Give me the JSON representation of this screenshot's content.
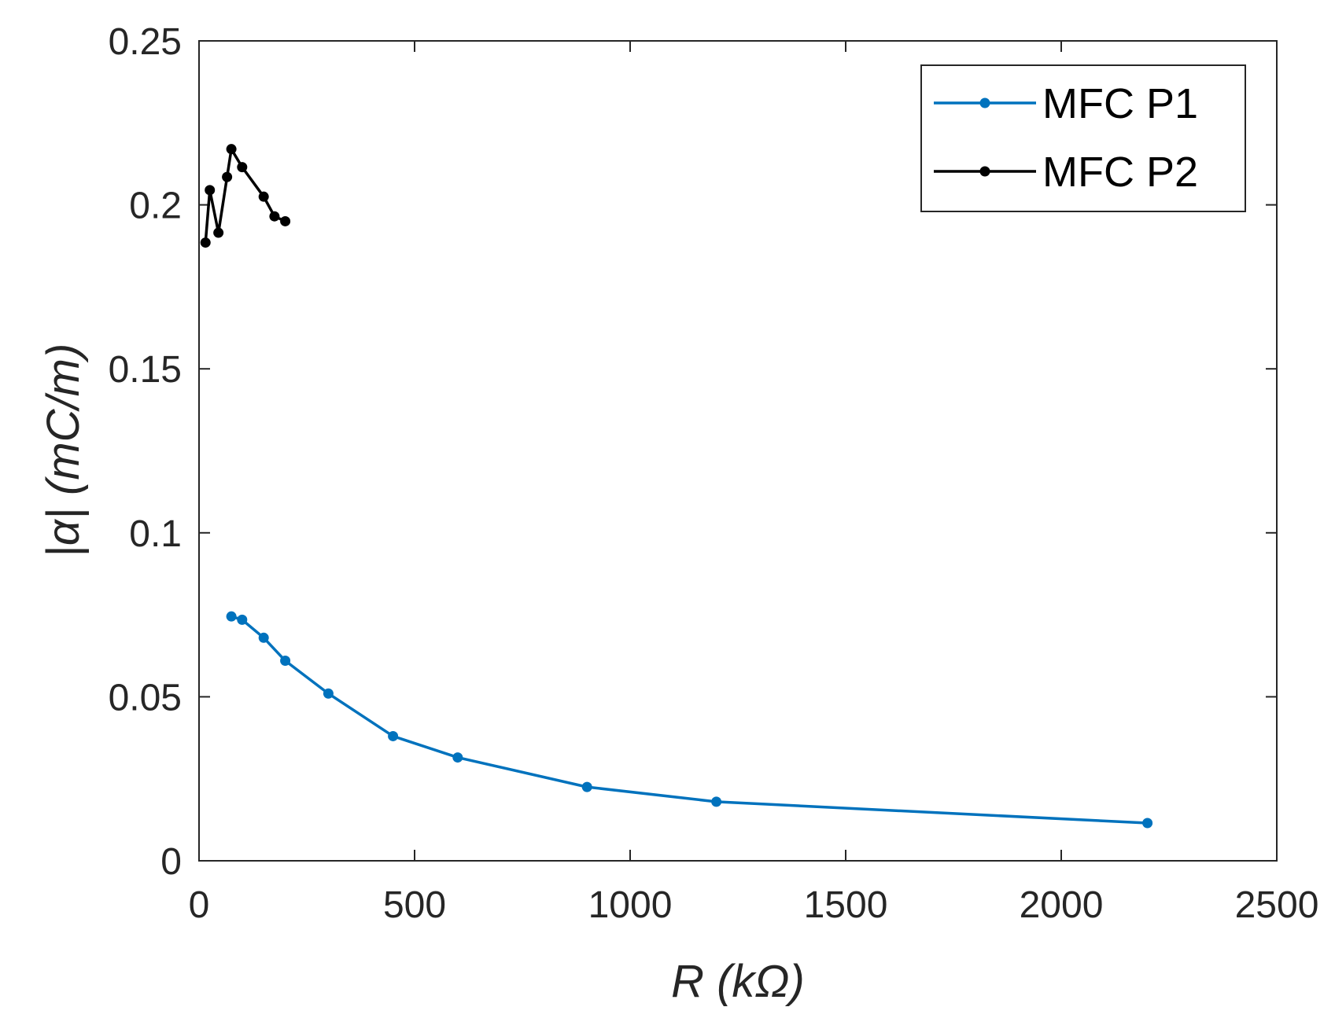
{
  "chart_data": {
    "type": "line",
    "title": "",
    "xlabel": "R (kΩ)",
    "ylabel": "|α|  (mC/m)",
    "xlim": [
      0,
      2500
    ],
    "ylim": [
      0,
      0.25
    ],
    "xticks": [
      0,
      500,
      1000,
      1500,
      2000,
      2500
    ],
    "xtick_labels": [
      "0",
      "500",
      "1000",
      "1500",
      "2000",
      "2500"
    ],
    "yticks": [
      0,
      0.05,
      0.1,
      0.15,
      0.2,
      0.25
    ],
    "ytick_labels": [
      "0",
      "0.05",
      "0.1",
      "0.15",
      "0.2",
      "0.25"
    ],
    "grid": false,
    "legend_position": "top-right",
    "series": [
      {
        "name": "MFC P1",
        "color": "#0072BD",
        "x": [
          75,
          100,
          150,
          200,
          300,
          450,
          600,
          900,
          1200,
          2200
        ],
        "y": [
          0.0745,
          0.0735,
          0.068,
          0.061,
          0.051,
          0.038,
          0.0315,
          0.0225,
          0.018,
          0.0115
        ]
      },
      {
        "name": "MFC P2",
        "color": "#000000",
        "x": [
          15,
          25,
          45,
          65,
          75,
          100,
          150,
          175,
          200
        ],
        "y": [
          0.1885,
          0.2045,
          0.1915,
          0.2085,
          0.217,
          0.2115,
          0.2025,
          0.1965,
          0.195
        ]
      }
    ]
  }
}
